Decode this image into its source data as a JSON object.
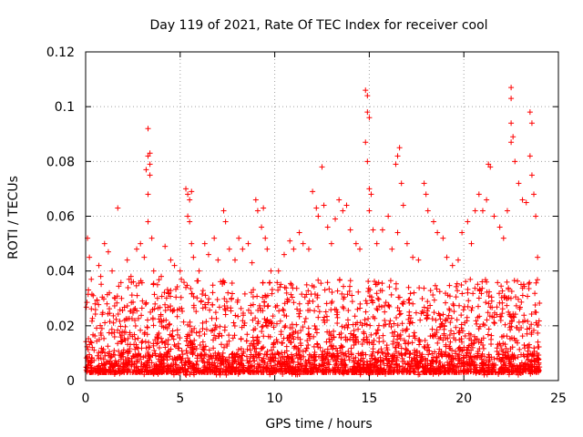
{
  "chart_data": {
    "type": "scatter",
    "title": "Day 119 of 2021, Rate Of TEC Index for receiver cool",
    "xlabel": "GPS time / hours",
    "ylabel": "ROTI / TECUs",
    "xlim": [
      0,
      25
    ],
    "ylim": [
      0,
      0.12
    ],
    "x_ticks": [
      0,
      5,
      10,
      15,
      20,
      25
    ],
    "x_tick_labels": [
      "0",
      "5",
      "10",
      "15",
      "20",
      "25"
    ],
    "y_ticks": [
      0,
      0.02,
      0.04,
      0.06,
      0.08,
      0.1,
      0.12
    ],
    "y_tick_labels": [
      "0",
      "0.02",
      "0.04",
      "0.06",
      "0.08",
      "0.1",
      "0.12"
    ],
    "grid": true,
    "marker": "+",
    "series_color": "#ff0000",
    "series": [
      {
        "name": "ROTI",
        "points": [
          [
            0.1,
            0.052
          ],
          [
            0.2,
            0.045
          ],
          [
            0.3,
            0.037
          ],
          [
            0.4,
            0.031
          ],
          [
            0.5,
            0.028
          ],
          [
            0.7,
            0.042
          ],
          [
            0.8,
            0.038
          ],
          [
            1.0,
            0.05
          ],
          [
            1.2,
            0.047
          ],
          [
            1.4,
            0.04
          ],
          [
            1.7,
            0.063
          ],
          [
            1.9,
            0.03
          ],
          [
            2.2,
            0.044
          ],
          [
            2.4,
            0.038
          ],
          [
            2.7,
            0.048
          ],
          [
            2.9,
            0.05
          ],
          [
            3.1,
            0.045
          ],
          [
            3.3,
            0.092
          ],
          [
            3.3,
            0.082
          ],
          [
            3.4,
            0.079
          ],
          [
            3.4,
            0.075
          ],
          [
            3.3,
            0.068
          ],
          [
            3.2,
            0.077
          ],
          [
            3.4,
            0.083
          ],
          [
            3.3,
            0.058
          ],
          [
            3.5,
            0.052
          ],
          [
            3.6,
            0.04
          ],
          [
            3.8,
            0.035
          ],
          [
            4.0,
            0.038
          ],
          [
            4.2,
            0.049
          ],
          [
            4.5,
            0.044
          ],
          [
            4.7,
            0.042
          ],
          [
            5.0,
            0.04
          ],
          [
            5.3,
            0.07
          ],
          [
            5.4,
            0.068
          ],
          [
            5.5,
            0.066
          ],
          [
            5.6,
            0.069
          ],
          [
            5.4,
            0.06
          ],
          [
            5.5,
            0.058
          ],
          [
            5.6,
            0.05
          ],
          [
            5.7,
            0.045
          ],
          [
            6.0,
            0.04
          ],
          [
            6.3,
            0.05
          ],
          [
            6.5,
            0.046
          ],
          [
            6.8,
            0.052
          ],
          [
            7.0,
            0.044
          ],
          [
            7.3,
            0.062
          ],
          [
            7.4,
            0.058
          ],
          [
            7.6,
            0.048
          ],
          [
            7.9,
            0.044
          ],
          [
            8.1,
            0.052
          ],
          [
            8.3,
            0.048
          ],
          [
            8.6,
            0.05
          ],
          [
            8.8,
            0.043
          ],
          [
            9.0,
            0.066
          ],
          [
            9.1,
            0.062
          ],
          [
            9.3,
            0.056
          ],
          [
            9.4,
            0.063
          ],
          [
            9.5,
            0.052
          ],
          [
            9.6,
            0.048
          ],
          [
            9.8,
            0.04
          ],
          [
            10.2,
            0.04
          ],
          [
            10.5,
            0.046
          ],
          [
            10.8,
            0.051
          ],
          [
            11.0,
            0.048
          ],
          [
            11.3,
            0.054
          ],
          [
            11.5,
            0.05
          ],
          [
            11.8,
            0.048
          ],
          [
            12.0,
            0.069
          ],
          [
            12.2,
            0.063
          ],
          [
            12.3,
            0.06
          ],
          [
            12.5,
            0.078
          ],
          [
            12.6,
            0.064
          ],
          [
            12.8,
            0.056
          ],
          [
            13.0,
            0.05
          ],
          [
            13.2,
            0.059
          ],
          [
            13.4,
            0.066
          ],
          [
            13.6,
            0.062
          ],
          [
            13.8,
            0.064
          ],
          [
            14.0,
            0.055
          ],
          [
            14.3,
            0.05
          ],
          [
            14.5,
            0.048
          ],
          [
            14.8,
            0.106
          ],
          [
            14.9,
            0.104
          ],
          [
            14.9,
            0.098
          ],
          [
            15.0,
            0.096
          ],
          [
            14.8,
            0.087
          ],
          [
            14.9,
            0.08
          ],
          [
            15.0,
            0.07
          ],
          [
            15.1,
            0.068
          ],
          [
            15.0,
            0.062
          ],
          [
            15.2,
            0.055
          ],
          [
            15.4,
            0.05
          ],
          [
            15.7,
            0.055
          ],
          [
            16.0,
            0.06
          ],
          [
            16.2,
            0.048
          ],
          [
            16.4,
            0.079
          ],
          [
            16.5,
            0.082
          ],
          [
            16.6,
            0.085
          ],
          [
            16.7,
            0.072
          ],
          [
            16.8,
            0.064
          ],
          [
            16.5,
            0.054
          ],
          [
            17.0,
            0.05
          ],
          [
            17.3,
            0.045
          ],
          [
            17.6,
            0.044
          ],
          [
            17.9,
            0.072
          ],
          [
            18.0,
            0.068
          ],
          [
            18.1,
            0.062
          ],
          [
            18.4,
            0.058
          ],
          [
            18.6,
            0.054
          ],
          [
            18.9,
            0.052
          ],
          [
            19.1,
            0.045
          ],
          [
            19.4,
            0.042
          ],
          [
            19.7,
            0.044
          ],
          [
            19.9,
            0.054
          ],
          [
            20.2,
            0.058
          ],
          [
            20.4,
            0.05
          ],
          [
            20.6,
            0.062
          ],
          [
            20.8,
            0.068
          ],
          [
            21.0,
            0.062
          ],
          [
            21.2,
            0.066
          ],
          [
            21.3,
            0.079
          ],
          [
            21.4,
            0.078
          ],
          [
            21.6,
            0.06
          ],
          [
            21.9,
            0.056
          ],
          [
            22.1,
            0.052
          ],
          [
            22.3,
            0.062
          ],
          [
            22.5,
            0.107
          ],
          [
            22.5,
            0.103
          ],
          [
            22.5,
            0.094
          ],
          [
            22.6,
            0.089
          ],
          [
            22.5,
            0.087
          ],
          [
            22.7,
            0.08
          ],
          [
            22.9,
            0.072
          ],
          [
            23.1,
            0.066
          ],
          [
            23.3,
            0.065
          ],
          [
            23.5,
            0.098
          ],
          [
            23.6,
            0.094
          ],
          [
            23.5,
            0.082
          ],
          [
            23.6,
            0.075
          ],
          [
            23.7,
            0.068
          ],
          [
            23.8,
            0.06
          ],
          [
            23.9,
            0.045
          ]
        ]
      }
    ]
  }
}
